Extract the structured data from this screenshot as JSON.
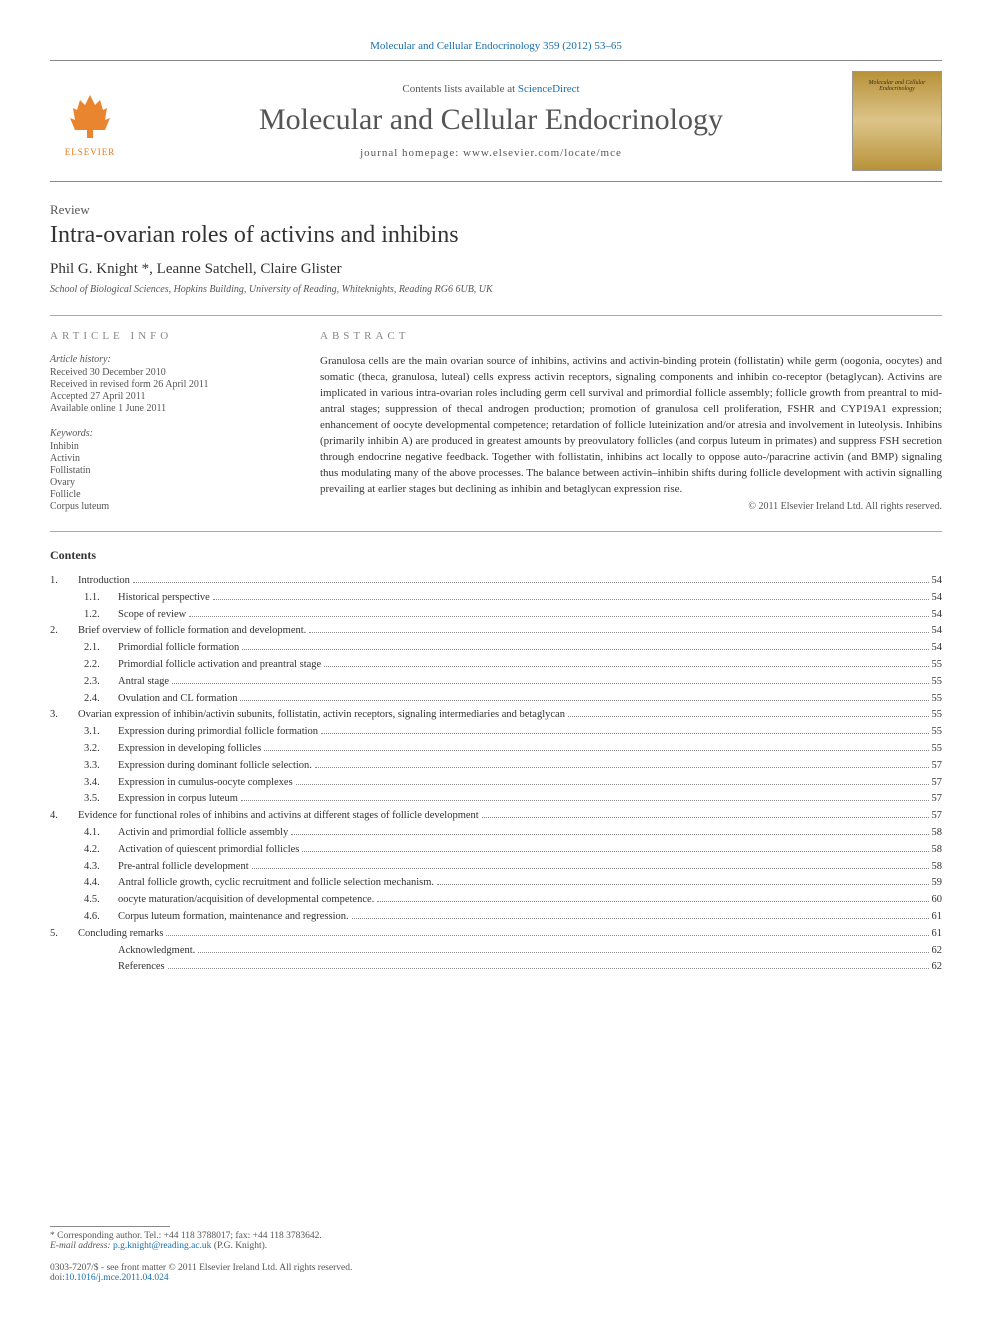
{
  "journal_ref": "Molecular and Cellular Endocrinology 359 (2012) 53–65",
  "masthead": {
    "contents_prefix": "Contents lists available at ",
    "contents_link": "ScienceDirect",
    "journal_title": "Molecular and Cellular Endocrinology",
    "homepage_prefix": "journal homepage: ",
    "homepage_url": "www.elsevier.com/locate/mce",
    "publisher": "ELSEVIER"
  },
  "article": {
    "type": "Review",
    "title": "Intra-ovarian roles of activins and inhibins",
    "authors": "Phil G. Knight *, Leanne Satchell, Claire Glister",
    "affiliation": "School of Biological Sciences, Hopkins Building, University of Reading, Whiteknights, Reading RG6 6UB, UK"
  },
  "info": {
    "heading": "article info",
    "history_label": "Article history:",
    "history": [
      "Received 30 December 2010",
      "Received in revised form 26 April 2011",
      "Accepted 27 April 2011",
      "Available online 1 June 2011"
    ],
    "keywords_label": "Keywords:",
    "keywords": [
      "Inhibin",
      "Activin",
      "Follistatin",
      "Ovary",
      "Follicle",
      "Corpus luteum"
    ]
  },
  "abstract": {
    "heading": "abstract",
    "text": "Granulosa cells are the main ovarian source of inhibins, activins and activin-binding protein (follistatin) while germ (oogonia, oocytes) and somatic (theca, granulosa, luteal) cells express activin receptors, signaling components and inhibin co-receptor (betaglycan). Activins are implicated in various intra-ovarian roles including germ cell survival and primordial follicle assembly; follicle growth from preantral to mid-antral stages; suppression of thecal androgen production; promotion of granulosa cell proliferation, FSHR and CYP19A1 expression; enhancement of oocyte developmental competence; retardation of follicle luteinization and/or atresia and involvement in luteolysis. Inhibins (primarily inhibin A) are produced in greatest amounts by preovulatory follicles (and corpus luteum in primates) and suppress FSH secretion through endocrine negative feedback. Together with follistatin, inhibins act locally to oppose auto-/paracrine activin (and BMP) signaling thus modulating many of the above processes. The balance between activin–inhibin shifts during follicle development with activin signalling prevailing at earlier stages but declining as inhibin and betaglycan expression rise.",
    "copyright": "© 2011 Elsevier Ireland Ltd. All rights reserved."
  },
  "contents": {
    "heading": "Contents",
    "items": [
      {
        "num": "1.",
        "title": "Introduction",
        "page": "54",
        "sub": [
          {
            "num": "1.1.",
            "title": "Historical perspective",
            "page": "54"
          },
          {
            "num": "1.2.",
            "title": "Scope of review",
            "page": "54"
          }
        ]
      },
      {
        "num": "2.",
        "title": "Brief overview of follicle formation and development.",
        "page": "54",
        "sub": [
          {
            "num": "2.1.",
            "title": "Primordial follicle formation",
            "page": "54"
          },
          {
            "num": "2.2.",
            "title": "Primordial follicle activation and preantral stage",
            "page": "55"
          },
          {
            "num": "2.3.",
            "title": "Antral stage",
            "page": "55"
          },
          {
            "num": "2.4.",
            "title": "Ovulation and CL formation",
            "page": "55"
          }
        ]
      },
      {
        "num": "3.",
        "title": "Ovarian expression of inhibin/activin subunits, follistatin, activin receptors, signaling intermediaries and betaglycan",
        "page": "55",
        "sub": [
          {
            "num": "3.1.",
            "title": "Expression during primordial follicle formation",
            "page": "55"
          },
          {
            "num": "3.2.",
            "title": "Expression in developing follicles",
            "page": "55"
          },
          {
            "num": "3.3.",
            "title": "Expression during dominant follicle selection.",
            "page": "57"
          },
          {
            "num": "3.4.",
            "title": "Expression in cumulus-oocyte complexes",
            "page": "57"
          },
          {
            "num": "3.5.",
            "title": "Expression in corpus luteum",
            "page": "57"
          }
        ]
      },
      {
        "num": "4.",
        "title": "Evidence for functional roles of inhibins and activins at different stages of follicle development",
        "page": "57",
        "sub": [
          {
            "num": "4.1.",
            "title": "Activin and primordial follicle assembly",
            "page": "58"
          },
          {
            "num": "4.2.",
            "title": "Activation of quiescent primordial follicles",
            "page": "58"
          },
          {
            "num": "4.3.",
            "title": "Pre-antral follicle development",
            "page": "58"
          },
          {
            "num": "4.4.",
            "title": "Antral follicle growth, cyclic recruitment and follicle selection mechanism.",
            "page": "59"
          },
          {
            "num": "4.5.",
            "title": "oocyte maturation/acquisition of developmental competence.",
            "page": "60"
          },
          {
            "num": "4.6.",
            "title": "Corpus luteum formation, maintenance and regression.",
            "page": "61"
          }
        ]
      },
      {
        "num": "5.",
        "title": "Concluding remarks",
        "page": "61",
        "sub": [
          {
            "num": "",
            "title": "Acknowledgment.",
            "page": "62"
          },
          {
            "num": "",
            "title": "References",
            "page": "62"
          }
        ]
      }
    ]
  },
  "footer": {
    "corresponding": "* Corresponding author. Tel.: +44 118 3788017; fax: +44 118 3783642.",
    "email_label": "E-mail address: ",
    "email": "p.g.knight@reading.ac.uk",
    "email_suffix": " (P.G. Knight).",
    "issn": "0303-7207/$ - see front matter © 2011 Elsevier Ireland Ltd. All rights reserved.",
    "doi_label": "doi:",
    "doi": "10.1016/j.mce.2011.04.024"
  },
  "colors": {
    "link": "#1a6faf",
    "text": "#333333",
    "muted": "#555555",
    "elsevier_orange": "#e67817",
    "cover_bg_top": "#b8923a",
    "cover_bg_mid": "#dcc488"
  }
}
